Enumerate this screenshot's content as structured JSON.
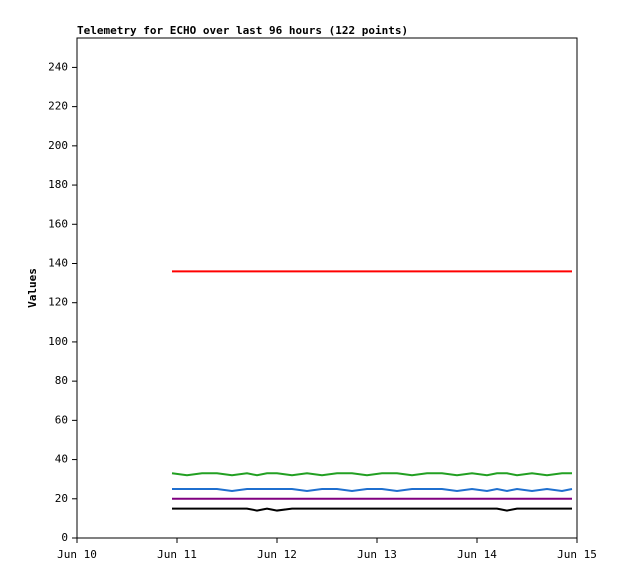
{
  "chart_data": {
    "type": "line",
    "title": "Telemetry for ECHO over last 96 hours (122 points)",
    "y_label": "Values",
    "x": [
      0.95,
      1.1,
      1.25,
      1.4,
      1.55,
      1.7,
      1.8,
      1.9,
      2.0,
      2.15,
      2.3,
      2.45,
      2.6,
      2.75,
      2.9,
      3.05,
      3.2,
      3.35,
      3.5,
      3.65,
      3.8,
      3.95,
      4.1,
      4.2,
      4.3,
      4.4,
      4.55,
      4.7,
      4.85,
      4.95
    ],
    "xlim": [
      0,
      5
    ],
    "xticks": [
      {
        "value": 0,
        "label": "Jun 10"
      },
      {
        "value": 1,
        "label": "Jun 11"
      },
      {
        "value": 2,
        "label": "Jun 12"
      },
      {
        "value": 3,
        "label": "Jun 13"
      },
      {
        "value": 4,
        "label": "Jun 14"
      },
      {
        "value": 5,
        "label": "Jun 15"
      }
    ],
    "ylim": [
      0,
      255
    ],
    "yticks": [
      0,
      20,
      40,
      60,
      80,
      100,
      120,
      140,
      160,
      180,
      200,
      220,
      240
    ],
    "series": [
      {
        "color": "#ff0000",
        "values": [
          136,
          136,
          136,
          136,
          136,
          136,
          136,
          136,
          136,
          136,
          136,
          136,
          136,
          136,
          136,
          136,
          136,
          136,
          136,
          136,
          136,
          136,
          136,
          136,
          136,
          136,
          136,
          136,
          136,
          136
        ]
      },
      {
        "color": "#22a022",
        "values": [
          33,
          32,
          33,
          33,
          32,
          33,
          32,
          33,
          33,
          32,
          33,
          32,
          33,
          33,
          32,
          33,
          33,
          32,
          33,
          33,
          32,
          33,
          32,
          33,
          33,
          32,
          33,
          32,
          33,
          33
        ]
      },
      {
        "color": "#1f6fcf",
        "values": [
          25,
          25,
          25,
          25,
          24,
          25,
          25,
          25,
          25,
          25,
          24,
          25,
          25,
          24,
          25,
          25,
          24,
          25,
          25,
          25,
          24,
          25,
          24,
          25,
          24,
          25,
          24,
          25,
          24,
          25
        ]
      },
      {
        "color": "#800080",
        "values": [
          20,
          20,
          20,
          20,
          20,
          20,
          20,
          20,
          20,
          20,
          20,
          20,
          20,
          20,
          20,
          20,
          20,
          20,
          20,
          20,
          20,
          20,
          20,
          20,
          20,
          20,
          20,
          20,
          20,
          20
        ]
      },
      {
        "color": "#000000",
        "values": [
          15,
          15,
          15,
          15,
          15,
          15,
          14,
          15,
          14,
          15,
          15,
          15,
          15,
          15,
          15,
          15,
          15,
          15,
          15,
          15,
          15,
          15,
          15,
          15,
          14,
          15,
          15,
          15,
          15,
          15
        ]
      }
    ]
  }
}
